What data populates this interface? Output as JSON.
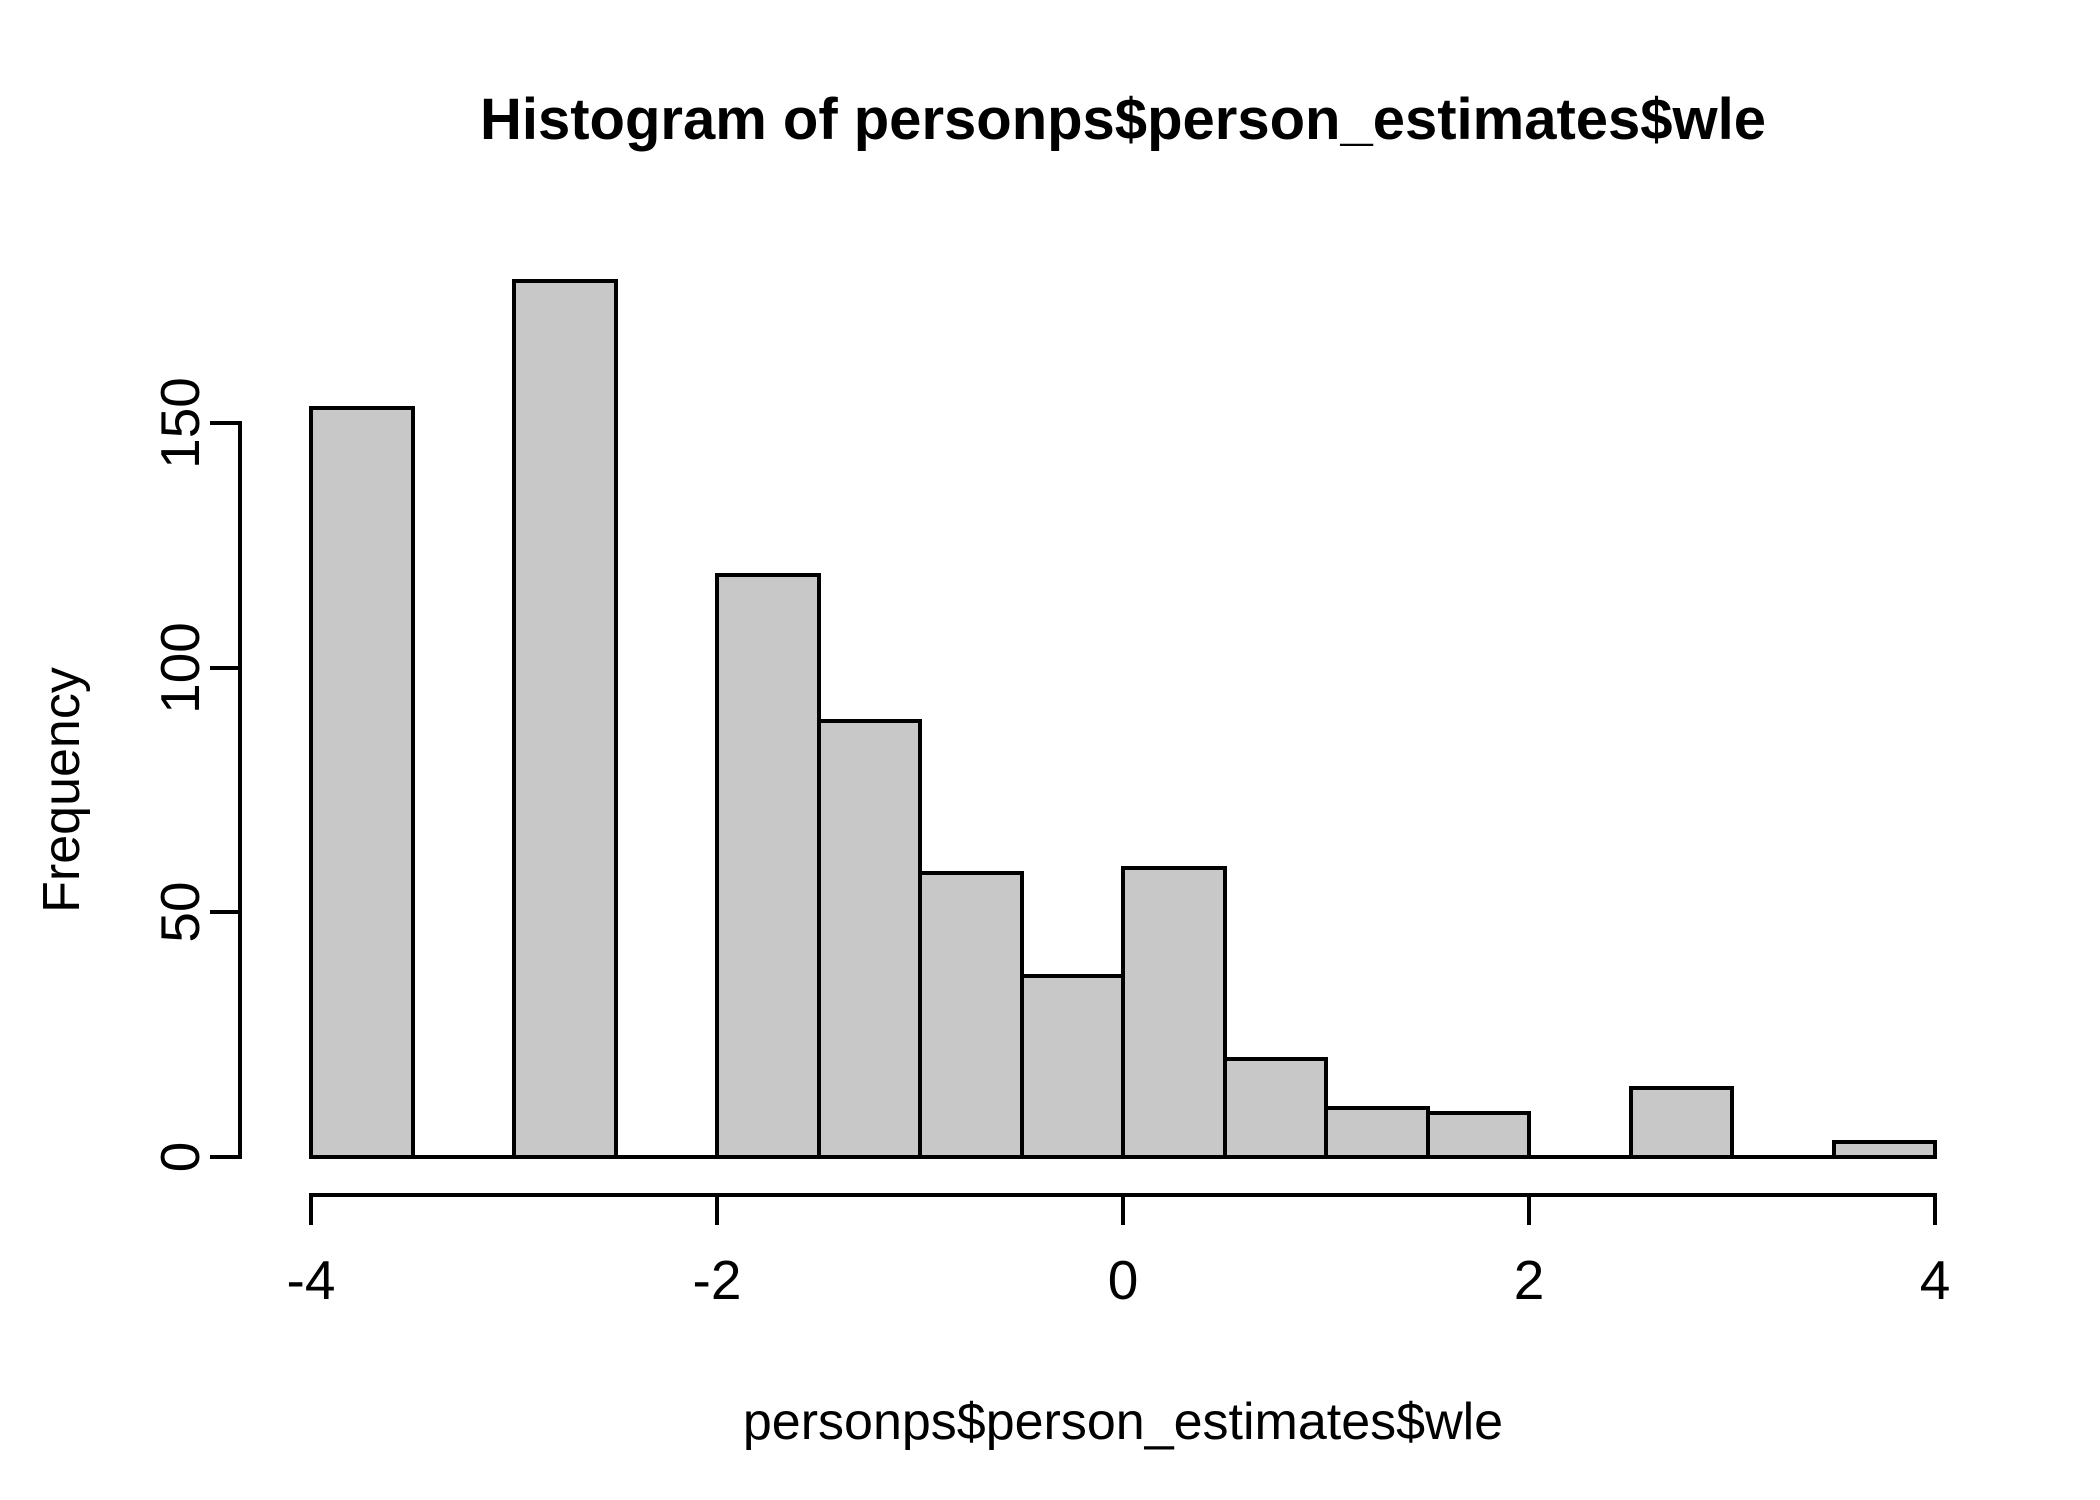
{
  "figure": {
    "title": "Histogram of personps$person_estimates$wle",
    "xlabel": "personps$person_estimates$wle",
    "ylabel": "Frequency"
  },
  "chart_data": {
    "type": "bar",
    "subtype": "histogram",
    "title": "Histogram of personps$person_estimates$wle",
    "xlabel": "personps$person_estimates$wle",
    "ylabel": "Frequency",
    "bin_width": 0.5,
    "breaks": [
      -4.0,
      -3.5,
      -3.0,
      -2.5,
      -2.0,
      -1.5,
      -1.0,
      -0.5,
      0.0,
      0.5,
      1.0,
      1.5,
      2.0,
      2.5,
      3.0,
      3.5,
      4.0
    ],
    "counts": [
      153,
      0,
      179,
      0,
      119,
      89,
      58,
      37,
      59,
      20,
      10,
      9,
      0,
      14,
      0,
      3
    ],
    "x_ticks": [
      -4,
      -2,
      0,
      2,
      4
    ],
    "x_tick_labels": [
      "-4",
      "-2",
      "0",
      "2",
      "4"
    ],
    "y_ticks": [
      0,
      50,
      100,
      150
    ],
    "y_tick_labels": [
      "0",
      "50",
      "100",
      "150"
    ],
    "xlim": [
      -4,
      4
    ],
    "ylim": [
      0,
      179
    ],
    "grid": "off",
    "legend": "none",
    "bar_fill": "#c8c8c8",
    "bar_stroke": "#000000",
    "background": "#ffffff"
  }
}
